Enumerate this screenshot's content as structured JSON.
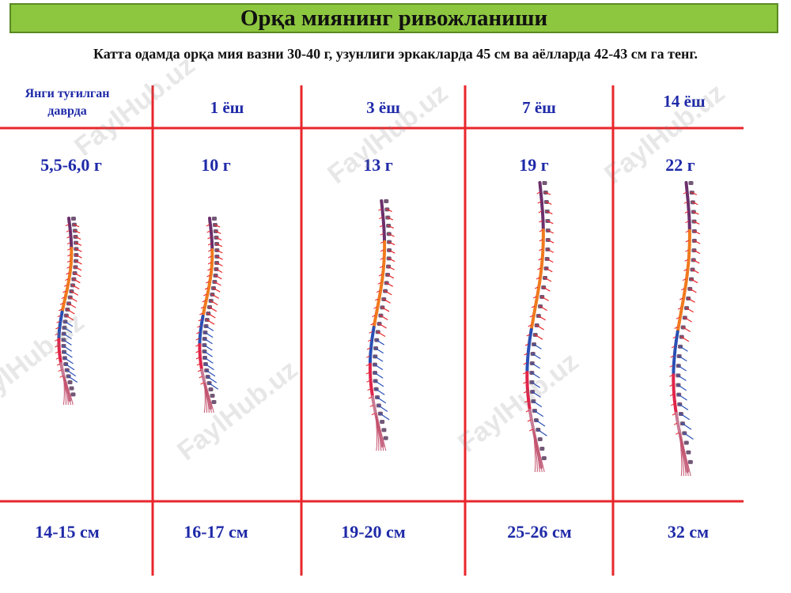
{
  "title": "Орқа миянинг ривожланиши",
  "subtitle": "Катта одамда орқа мия вазни 30-40 г, узунлиги эркакларда 45 см ва аёлларда 42-43 см га тенг.",
  "colors": {
    "title_bg": "#8dc63f",
    "grid_lines": "#e8262b",
    "label_text": "#1f2aa8"
  },
  "columns": [
    {
      "age": "Янги туғилган даврда",
      "weight": "5,5-6,0 г",
      "length": "14-15 см"
    },
    {
      "age": "1 ёш",
      "weight": "10 г",
      "length": "16-17 см"
    },
    {
      "age": "3 ёш",
      "weight": "13 г",
      "length": "19-20 см"
    },
    {
      "age": "7 ёш",
      "weight": "19 г",
      "length": "25-26 см"
    },
    {
      "age": "14 ёш",
      "weight": "22 г",
      "length": "32 см"
    }
  ],
  "watermark": "FaylHub.uz"
}
